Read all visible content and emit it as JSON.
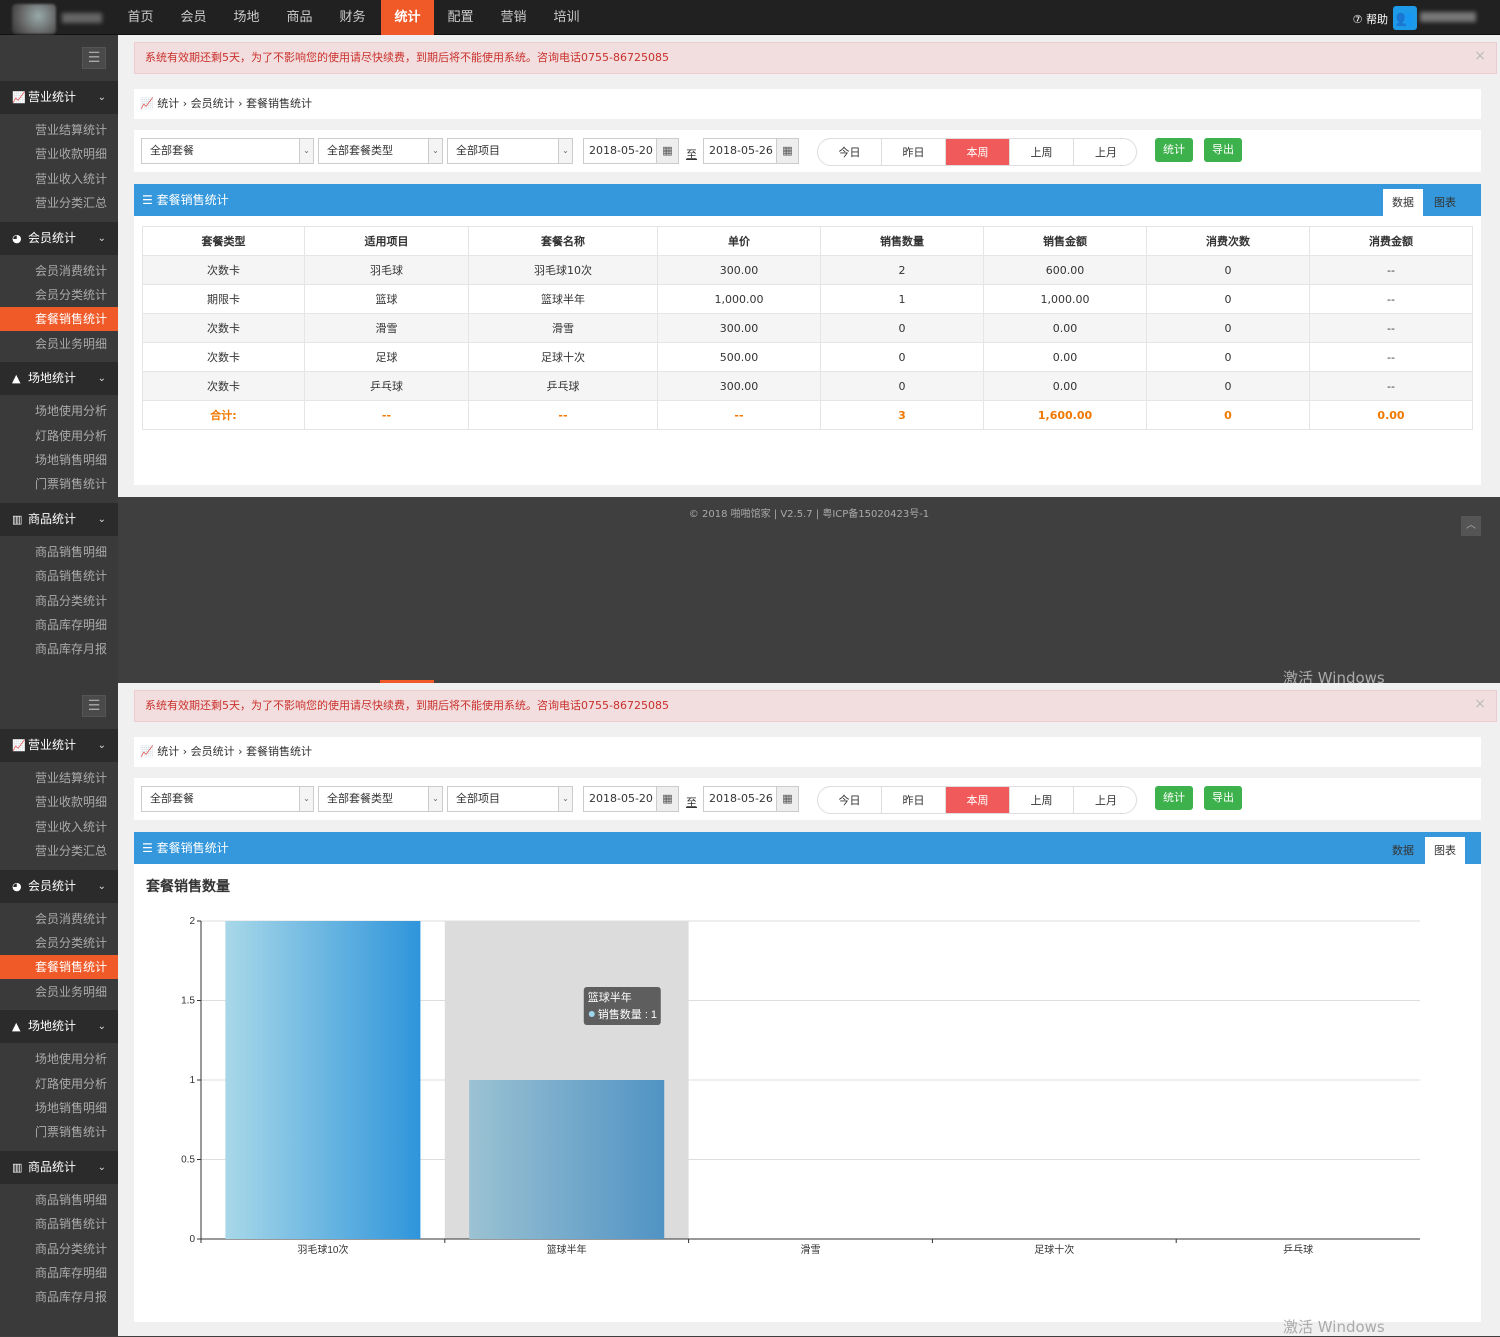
{
  "topnav": {
    "items": [
      "首页",
      "会员",
      "场地",
      "商品",
      "财务",
      "统计",
      "配置",
      "营销",
      "培训"
    ],
    "active_index": 5,
    "help": "⑦ 帮助"
  },
  "sidebar": {
    "groups": [
      {
        "label": "营业统计",
        "icon": "line-chart-icon",
        "items": [
          "营业结算统计",
          "营业收款明细",
          "营业收入统计",
          "营业分类汇总"
        ]
      },
      {
        "label": "会员统计",
        "icon": "pie-chart-icon",
        "items": [
          "会员消费统计",
          "会员分类统计",
          "套餐销售统计",
          "会员业务明细"
        ]
      },
      {
        "label": "场地统计",
        "icon": "area-chart-icon",
        "items": [
          "场地使用分析",
          "灯路使用分析",
          "场地销售明细",
          "门票销售统计"
        ]
      },
      {
        "label": "商品统计",
        "icon": "bar-chart-icon",
        "items": [
          "商品销售明细",
          "商品销售统计",
          "商品分类统计",
          "商品库存明细",
          "商品库存月报"
        ]
      }
    ],
    "active_item": "套餐销售统计"
  },
  "notice": "系统有效期还剩5天，为了不影响您的使用请尽快续费，到期后将不能使用系统。咨询电话0755-86725085",
  "breadcrumb": {
    "icon": "line-chart-icon",
    "parts": [
      "统计",
      "会员统计",
      "套餐销售统计"
    ]
  },
  "filters": {
    "package": "全部套餐",
    "package_type": "全部套餐类型",
    "project": "全部项目",
    "date_from": "2018-05-20",
    "to_label": "至",
    "date_to": "2018-05-26",
    "quick": [
      "今日",
      "昨日",
      "本周",
      "上周",
      "上月"
    ],
    "quick_active": 2,
    "stat_button": "统计",
    "export_button": "导出"
  },
  "panel": {
    "title": "☰ 套餐销售统计",
    "tab_data": "数据",
    "tab_chart": "图表"
  },
  "table": {
    "columns": [
      "套餐类型",
      "适用项目",
      "套餐名称",
      "单价",
      "销售数量",
      "销售金额",
      "消费次数",
      "消费金额"
    ],
    "rows": [
      [
        "次数卡",
        "羽毛球",
        "羽毛球10次",
        "300.00",
        "2",
        "600.00",
        "0",
        "--"
      ],
      [
        "期限卡",
        "篮球",
        "篮球半年",
        "1,000.00",
        "1",
        "1,000.00",
        "0",
        "--"
      ],
      [
        "次数卡",
        "滑雪",
        "滑雪",
        "300.00",
        "0",
        "0.00",
        "0",
        "--"
      ],
      [
        "次数卡",
        "足球",
        "足球十次",
        "500.00",
        "0",
        "0.00",
        "0",
        "--"
      ],
      [
        "次数卡",
        "乒乓球",
        "乒乓球",
        "300.00",
        "0",
        "0.00",
        "0",
        "--"
      ]
    ],
    "total": [
      "合计:",
      "--",
      "--",
      "--",
      "3",
      "1,600.00",
      "0",
      "0.00"
    ]
  },
  "footer": "© 2018 啪啪馆家 | V2.5.7 | 粤ICP备15020423号-1",
  "watermark": "激活 Windows",
  "chart_data": {
    "type": "bar",
    "title": "套餐销售数量",
    "categories": [
      "羽毛球10次",
      "篮球半年",
      "滑雪",
      "足球十次",
      "乒乓球"
    ],
    "series": [
      {
        "name": "销售数量",
        "values": [
          2,
          1,
          0,
          0,
          0
        ]
      }
    ],
    "ylim": [
      0,
      2
    ],
    "yticks": [
      "0",
      "0.5",
      "1",
      "1.5",
      "2"
    ],
    "grid": true,
    "tooltip": {
      "category": "篮球半年",
      "series": "销售数量",
      "value": "1",
      "text": "销售数量 : 1"
    }
  }
}
